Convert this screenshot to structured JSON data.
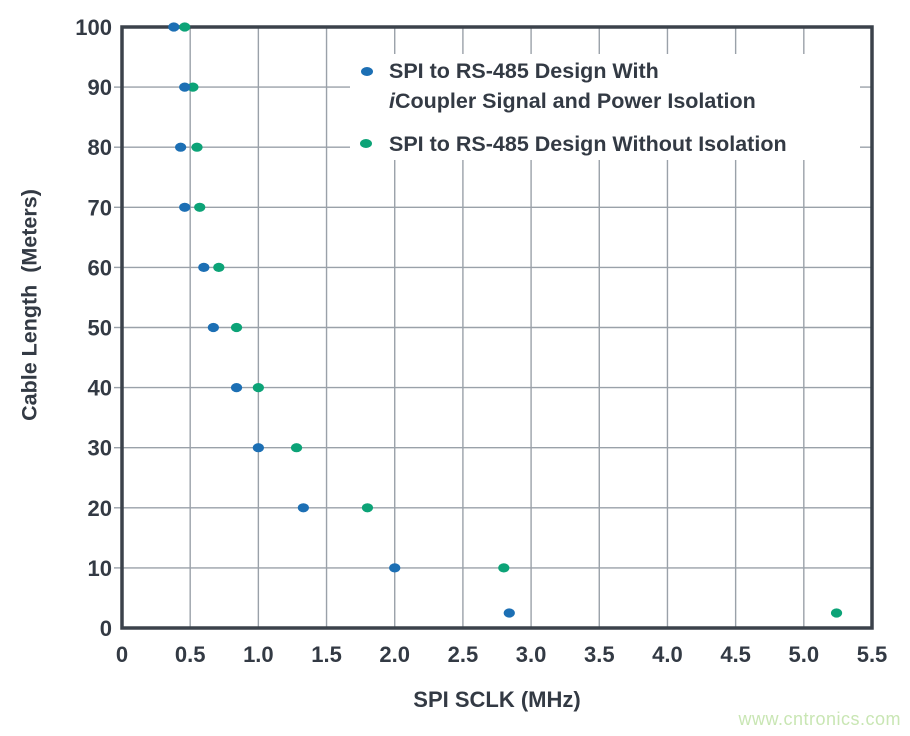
{
  "watermark": "www.cntronics.com",
  "chart_data": {
    "type": "scatter",
    "title": "",
    "xlabel": "SPI SCLK (MHz)",
    "ylabel": "Cable Length  (Meters)",
    "xlim": [
      0,
      5.5
    ],
    "ylim": [
      0,
      100
    ],
    "grid": true,
    "x_tick_labels": [
      "0",
      "0.5",
      "1.0",
      "1.5",
      "2.0",
      "2.5",
      "3.0",
      "3.5",
      "4.0",
      "4.5",
      "5.0",
      "5.5"
    ],
    "y_tick_labels": [
      "0",
      "10",
      "20",
      "30",
      "40",
      "50",
      "60",
      "70",
      "80",
      "90",
      "100"
    ],
    "legend": {
      "position": "top-center-inside",
      "series1_line1": "SPI to RS-485 Design With",
      "series1_line2_italic": "i",
      "series1_line2_rest": "Coupler Signal and Power Isolation",
      "series2_label": "SPI to RS-485 Design Without Isolation"
    },
    "series": [
      {
        "name": "SPI to RS-485 Design With iCoupler Signal and Power Isolation",
        "color": "#1c6fb4",
        "marker": "ellipse-dot",
        "points": [
          [
            0.38,
            100
          ],
          [
            0.46,
            90
          ],
          [
            0.43,
            80
          ],
          [
            0.46,
            70
          ],
          [
            0.6,
            60
          ],
          [
            0.67,
            50
          ],
          [
            0.84,
            40
          ],
          [
            1.0,
            30
          ],
          [
            1.33,
            20
          ],
          [
            2.0,
            10
          ],
          [
            2.84,
            2.5
          ]
        ]
      },
      {
        "name": "SPI to RS-485 Design Without Isolation",
        "color": "#0ca377",
        "marker": "ellipse-dot",
        "points": [
          [
            0.46,
            100
          ],
          [
            0.52,
            90
          ],
          [
            0.55,
            80
          ],
          [
            0.57,
            70
          ],
          [
            0.71,
            60
          ],
          [
            0.84,
            50
          ],
          [
            1.0,
            40
          ],
          [
            1.28,
            30
          ],
          [
            1.8,
            20
          ],
          [
            2.8,
            10
          ],
          [
            5.24,
            2.5
          ]
        ]
      }
    ],
    "colors": {
      "grid": "#9aa1a9",
      "frame": "#3b424b",
      "text": "#333a44",
      "watermark": "#c9e6b4"
    }
  }
}
